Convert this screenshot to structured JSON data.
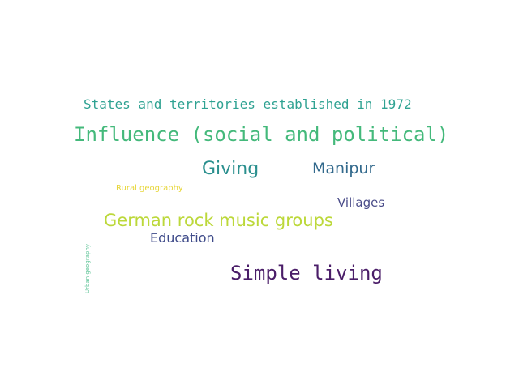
{
  "word_cloud": {
    "words": [
      {
        "text": "States and territories established in 1972",
        "color": "#2fa292"
      },
      {
        "text": "Influence (social and political)",
        "color": "#44b97b"
      },
      {
        "text": "Giving",
        "color": "#2a8f8e"
      },
      {
        "text": "Manipur",
        "color": "#32698c"
      },
      {
        "text": "Rural geography",
        "color": "#e7d63a"
      },
      {
        "text": "Villages",
        "color": "#4a4c89"
      },
      {
        "text": "German rock music groups",
        "color": "#bcd83a"
      },
      {
        "text": "Education",
        "color": "#3e4a89"
      },
      {
        "text": "Simple living",
        "color": "#4a1d68"
      },
      {
        "text": "Urban geography",
        "color": "#63c59a"
      }
    ]
  }
}
